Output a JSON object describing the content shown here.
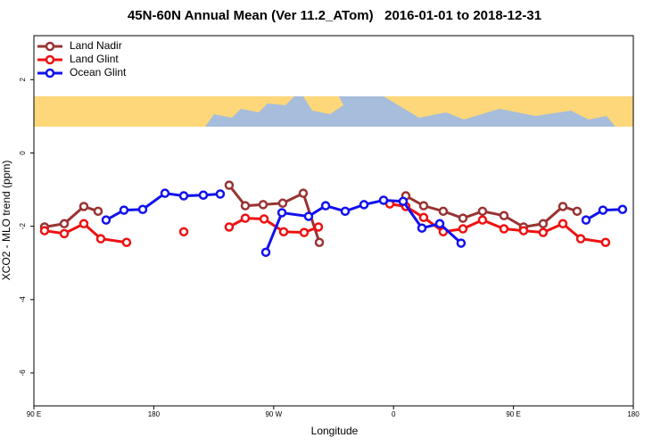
{
  "chart_data": {
    "type": "line",
    "title": "45N-60N Annual Mean (Ver 11.2_ATom)   2016-01-01 to 2018-12-31",
    "x_label": "Longitude",
    "y_label": "XCO2 - MLO trend (ppm)",
    "xlim": [
      90,
      540
    ],
    "ylim": [
      -6.9,
      3.2
    ],
    "xticks": [
      {
        "value": 90,
        "label": "90 E"
      },
      180,
      {
        "value": 270,
        "label": "90 W"
      },
      {
        "value": 360,
        "label": "0"
      },
      {
        "value": 450,
        "label": "90 E"
      },
      {
        "value": 540,
        "label": "180"
      }
    ],
    "yticks": [
      2,
      0,
      -2,
      -4,
      -6
    ],
    "legend": "top-left",
    "grid": false,
    "series": [
      {
        "name": "Land Nadir",
        "color": "#993333",
        "x": [
          98.0,
          112.8,
          127.5,
          138.2,
          null,
          236.6,
          248.7,
          262.1,
          276.8,
          292.2,
          304.3,
          null,
          369.2,
          382.6,
          397.3,
          412.1,
          426.8,
          442.9,
          457.6,
          472.3,
          487.1,
          497.8
        ],
        "values": [
          -2.02,
          -1.93,
          -1.46,
          -1.59,
          null,
          -0.88,
          -1.44,
          -1.41,
          -1.37,
          -1.1,
          -2.44,
          null,
          -1.17,
          -1.44,
          -1.59,
          -1.78,
          -1.59,
          -1.71,
          -2.02,
          -1.93,
          -1.46,
          -1.59
        ]
      },
      {
        "name": "Land Glint",
        "color": "#ee1111",
        "x": [
          98.0,
          112.8,
          127.5,
          140.2,
          159.6,
          null,
          202.5,
          null,
          236.6,
          248.7,
          262.8,
          277.5,
          292.9,
          303.6,
          null,
          357.2,
          369.2,
          382.6,
          397.3,
          412.1,
          426.8,
          442.9,
          457.6,
          472.3,
          487.1,
          500.5,
          519.2
        ],
        "values": [
          -2.12,
          -2.2,
          -1.93,
          -2.34,
          -2.44,
          null,
          -2.15,
          null,
          -2.02,
          -1.78,
          -1.8,
          -2.15,
          -2.17,
          -2.02,
          null,
          -1.39,
          -1.46,
          -1.76,
          -2.15,
          -2.07,
          -1.83,
          -2.07,
          -2.12,
          -2.17,
          -1.93,
          -2.34,
          -2.44
        ]
      },
      {
        "name": "Ocean Glint",
        "color": "#1111ee",
        "x": [
          144.2,
          157.6,
          171.7,
          188.4,
          202.5,
          217.2,
          229.9,
          null,
          264.1,
          276.2,
          296.2,
          309.0,
          323.7,
          337.8,
          352.5,
          367.2,
          381.3,
          394.7,
          410.7,
          null,
          504.5,
          517.2,
          531.9
        ],
        "values": [
          -1.83,
          -1.56,
          -1.54,
          -1.1,
          -1.17,
          -1.15,
          -1.12,
          null,
          -2.71,
          -1.63,
          -1.73,
          -1.44,
          -1.59,
          -1.41,
          -1.29,
          -1.32,
          -2.05,
          -1.93,
          -2.46,
          null,
          -1.83,
          -1.56,
          -1.54
        ]
      }
    ]
  }
}
